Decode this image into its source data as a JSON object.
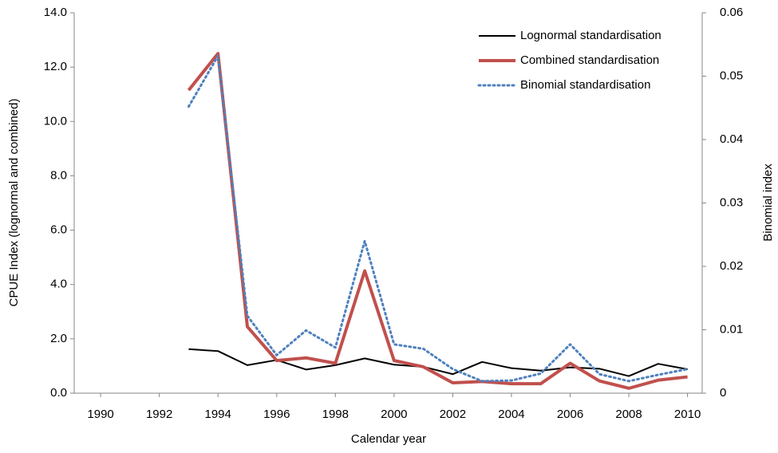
{
  "chart_data": {
    "type": "line",
    "x_label": "Calendar year",
    "y_label": "CPUE  Index (lognormal and combined)",
    "y2_label": "Binomial index",
    "xlim": [
      1989.1,
      2010.5
    ],
    "xticks": [
      1990,
      1992,
      1994,
      1996,
      1998,
      2000,
      2002,
      2004,
      2006,
      2008,
      2010
    ],
    "ylim": [
      0,
      14
    ],
    "yticks": [
      {
        "value": 0,
        "label": "0.0"
      },
      {
        "value": 2,
        "label": "2.0"
      },
      {
        "value": 4,
        "label": "4.0"
      },
      {
        "value": 6,
        "label": "6.0"
      },
      {
        "value": 8,
        "label": "8.0"
      },
      {
        "value": 10,
        "label": "10.0"
      },
      {
        "value": 12,
        "label": "12.0"
      },
      {
        "value": 14,
        "label": "14.0"
      }
    ],
    "y2lim": [
      0,
      0.06
    ],
    "y2ticks": [
      0,
      0.01,
      0.02,
      0.03,
      0.04,
      0.05,
      0.06
    ],
    "legend": "upper right",
    "x": [
      1993,
      1994,
      1995,
      1996,
      1997,
      1998,
      1999,
      2000,
      2001,
      2002,
      2003,
      2004,
      2005,
      2006,
      2007,
      2008,
      2009,
      2010
    ],
    "series": [
      {
        "name": "Lognormal standardisation",
        "color": "#000000",
        "linewidth": 2,
        "linestyle": "solid",
        "values": [
          1.62,
          1.55,
          1.03,
          1.22,
          0.87,
          1.03,
          1.28,
          1.05,
          0.97,
          0.7,
          1.15,
          0.92,
          0.83,
          0.95,
          0.9,
          0.63,
          1.08,
          0.88
        ]
      },
      {
        "name": "Combined standardisation",
        "color": "#c0504d",
        "linewidth": 4,
        "linestyle": "solid",
        "values": [
          11.15,
          12.5,
          2.45,
          1.2,
          1.3,
          1.1,
          4.5,
          1.2,
          0.97,
          0.38,
          0.43,
          0.35,
          0.35,
          1.1,
          0.45,
          0.18,
          0.48,
          0.6
        ]
      },
      {
        "name": "Binomial standardisation",
        "color": "#4f81bd",
        "linewidth": 3,
        "linestyle": "dotted",
        "axis": "y2",
        "values": [
          0.0452,
          0.0532,
          0.0122,
          0.006,
          0.0099,
          0.0072,
          0.024,
          0.0077,
          0.007,
          0.0038,
          0.0019,
          0.002,
          0.0031,
          0.0077,
          0.003,
          0.0019,
          0.0029,
          0.0038
        ]
      }
    ]
  }
}
